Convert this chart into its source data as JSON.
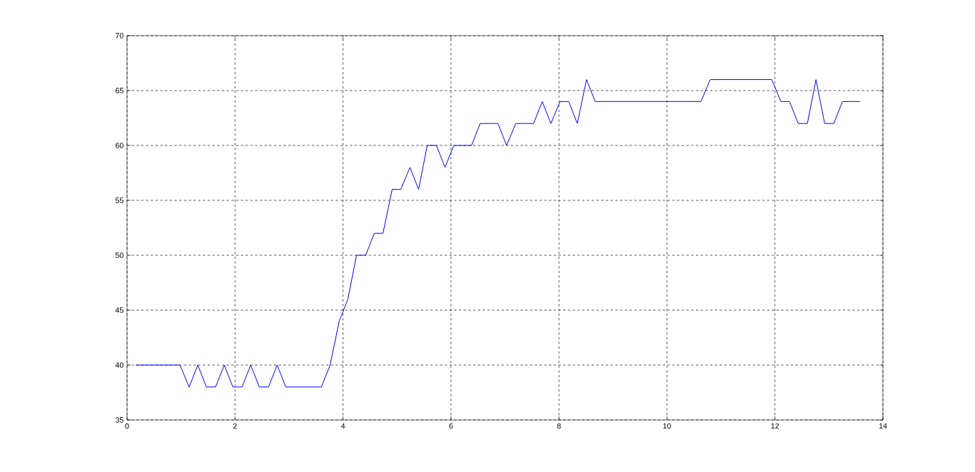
{
  "chart_data": {
    "type": "line",
    "x": [
      0.16,
      0.98,
      1.15,
      1.31,
      1.47,
      1.64,
      1.8,
      1.96,
      2.13,
      2.29,
      2.45,
      2.62,
      2.78,
      2.94,
      3.6,
      3.76,
      3.93,
      4.09,
      4.25,
      4.42,
      4.58,
      4.74,
      4.91,
      5.07,
      5.24,
      5.4,
      5.56,
      5.73,
      5.89,
      6.05,
      6.38,
      6.54,
      6.87,
      7.03,
      7.2,
      7.53,
      7.69,
      7.85,
      8.02,
      8.18,
      8.34,
      8.51,
      8.67,
      10.63,
      10.8,
      11.94,
      12.11,
      12.27,
      12.43,
      12.6,
      12.76,
      12.92,
      13.09,
      13.25,
      13.58
    ],
    "series": [
      {
        "color": "#0000ff",
        "values": [
          40,
          40,
          38,
          40,
          38,
          38,
          40,
          38,
          38,
          40,
          38,
          38,
          40,
          38,
          38,
          40,
          44,
          46,
          50,
          50,
          52,
          52,
          56,
          56,
          58,
          56,
          60,
          60,
          58,
          60,
          60,
          62,
          62,
          60,
          62,
          62,
          64,
          62,
          64,
          64,
          62,
          66,
          64,
          64,
          66,
          66,
          64,
          64,
          62,
          62,
          66,
          62,
          62,
          64,
          64
        ]
      }
    ],
    "xlim": [
      0,
      14
    ],
    "ylim": [
      35,
      70
    ],
    "xticks": [
      0,
      2,
      4,
      6,
      8,
      10,
      12,
      14
    ],
    "yticks": [
      35,
      40,
      45,
      50,
      55,
      60,
      65,
      70
    ],
    "grid": true,
    "marker": "none",
    "line_style": "solid"
  }
}
